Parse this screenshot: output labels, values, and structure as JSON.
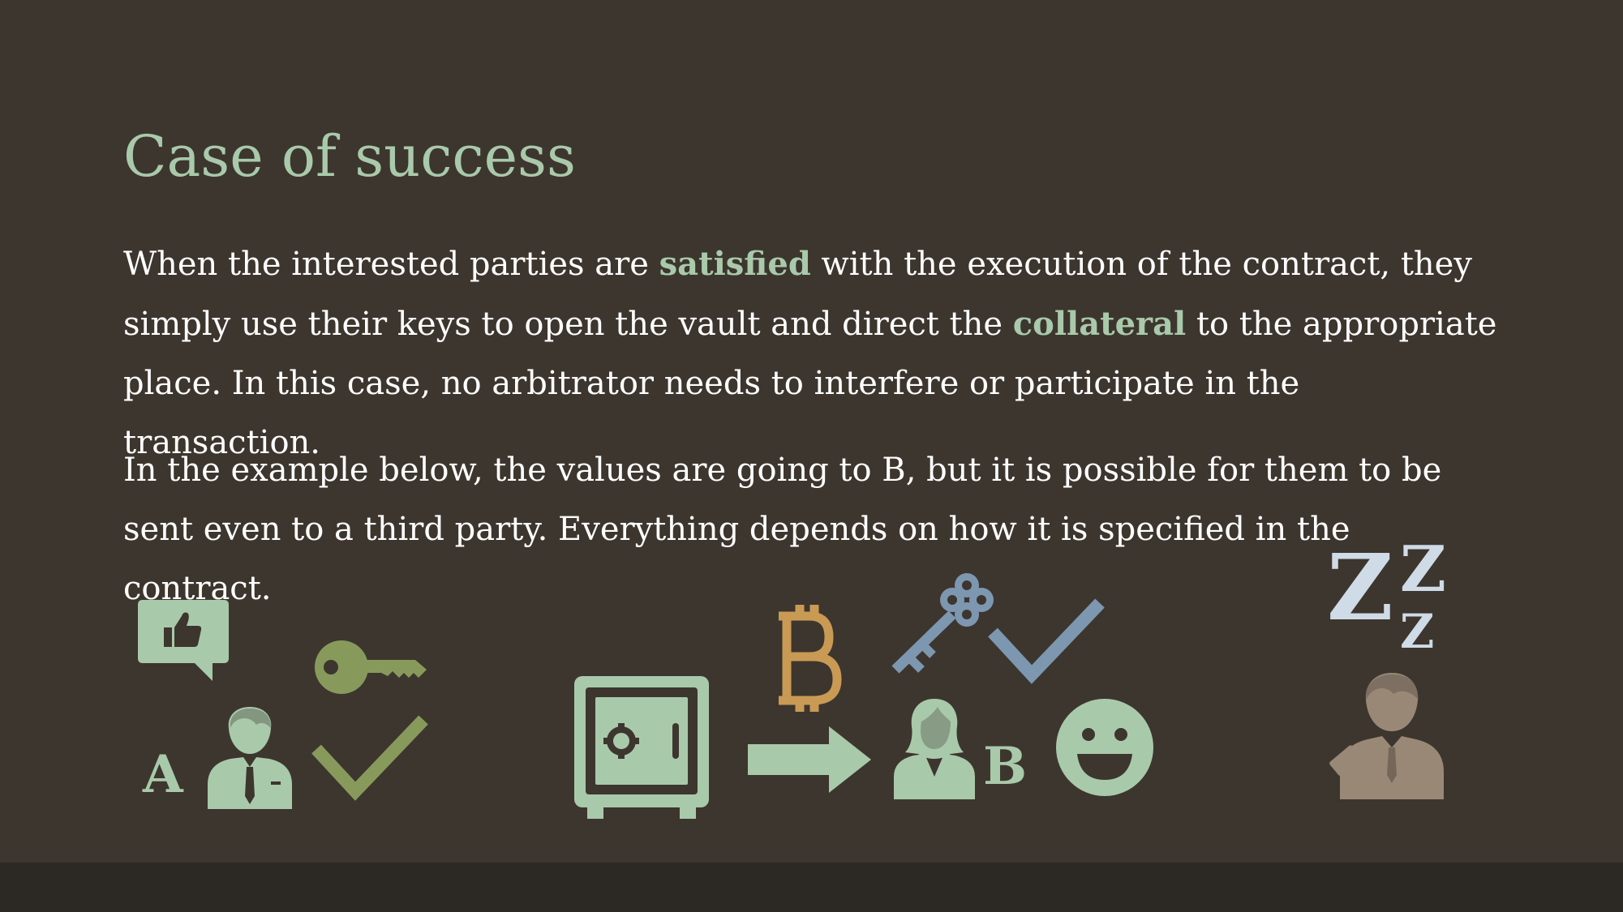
{
  "slide": {
    "title": "Case of success",
    "paragraph1": {
      "part1": "When the interested parties are ",
      "highlight1": "satisfied",
      "part2": " with the execution of the contract, they simply use their keys to open the vault and direct the ",
      "highlight2": "collateral",
      "part3": " to the appropriate place. In this case, no arbitrator needs to interfere or participate in the transaction."
    },
    "paragraph2": "In the example below, the values are going to B, but it is possible for them to be sent even to a third party. Everything depends on how it is specified in the contract."
  },
  "illustration": {
    "party_a_label": "A",
    "party_b_label": "B",
    "sleep_letters": [
      "Z",
      "Z",
      "Z"
    ],
    "icons": [
      "thumbs-up-speech-icon",
      "key-icon",
      "checkmark-icon",
      "businessman-icon",
      "safe-icon",
      "bitcoin-icon",
      "arrow-right-icon",
      "ornate-key-icon",
      "businesswoman-icon",
      "smiley-icon",
      "sleep-icon",
      "arbitrator-icon"
    ],
    "colors": {
      "mint": "#a9c9ab",
      "olive": "#879a5c",
      "gold": "#c99a54",
      "steel_blue": "#7d97b1",
      "pale_blue": "#cfdbe6",
      "taupe": "#9a8877",
      "background": "#3d362e",
      "footer": "#2c2824"
    }
  }
}
